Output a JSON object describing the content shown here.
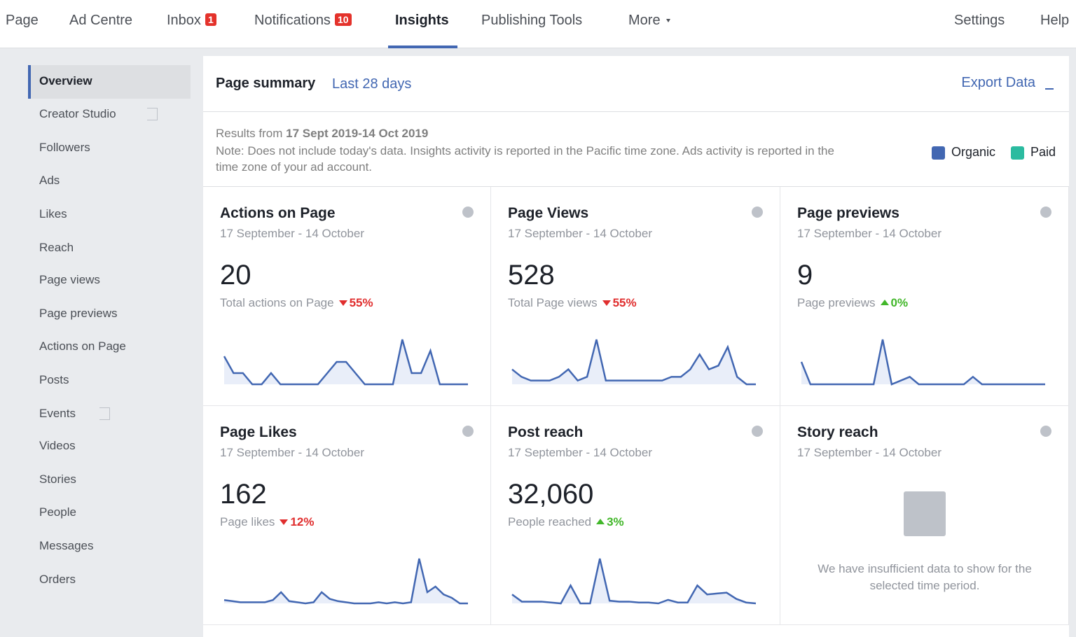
{
  "nav": {
    "items": [
      {
        "label": "Page"
      },
      {
        "label": "Ad Centre"
      },
      {
        "label": "Inbox",
        "badge": "1"
      },
      {
        "label": "Notifications",
        "badge": "10"
      },
      {
        "label": "Insights",
        "active": true
      },
      {
        "label": "Publishing Tools"
      },
      {
        "label": "More",
        "menu": true
      }
    ],
    "right": [
      "Settings",
      "Help"
    ]
  },
  "sidebar": {
    "items": [
      {
        "label": "Overview",
        "active": true
      },
      {
        "label": "Creator Studio",
        "external": true
      },
      {
        "label": "Followers"
      },
      {
        "label": "Ads"
      },
      {
        "label": "Likes"
      },
      {
        "label": "Reach"
      },
      {
        "label": "Page views"
      },
      {
        "label": "Page previews"
      },
      {
        "label": "Actions on Page"
      },
      {
        "label": "Posts"
      },
      {
        "label": "Events",
        "external": true
      },
      {
        "label": "Videos"
      },
      {
        "label": "Stories"
      },
      {
        "label": "People"
      },
      {
        "label": "Messages"
      },
      {
        "label": "Orders"
      }
    ]
  },
  "summary": {
    "title": "Page summary",
    "range": "Last 28 days",
    "export": "Export Data",
    "results_prefix": "Results from",
    "results_range": "17 Sept 2019-14 Oct 2019",
    "note": "Note: Does not include today's data. Insights activity is reported in the Pacific time zone. Ads activity is reported in the time zone of your ad account.",
    "legend": [
      {
        "name": "Organic",
        "color": "#4267b2"
      },
      {
        "name": "Paid",
        "color": "#2bbba0"
      }
    ]
  },
  "cards": [
    {
      "title": "Actions on Page",
      "dates": "17 September - 14 October",
      "value": "20",
      "caption": "Total actions on Page",
      "change": "55%",
      "direction": "down",
      "spark": [
        2.5,
        1,
        1,
        0,
        0,
        1,
        0,
        0,
        0,
        0,
        0,
        1,
        2,
        2,
        1,
        0,
        0,
        0,
        0,
        4,
        1,
        1,
        3,
        0,
        0,
        0,
        0
      ]
    },
    {
      "title": "Page Views",
      "dates": "17 September - 14 October",
      "value": "528",
      "caption": "Total Page views",
      "change": "55%",
      "direction": "down",
      "spark": [
        2,
        1,
        0.5,
        0.5,
        0.5,
        1,
        2,
        0.5,
        1,
        6,
        0.5,
        0.5,
        0.5,
        0.5,
        0.5,
        0.5,
        0.5,
        1,
        1,
        2,
        4,
        2,
        2.5,
        5,
        1,
        0,
        0
      ]
    },
    {
      "title": "Page previews",
      "dates": "17 September - 14 October",
      "value": "9",
      "caption": "Page previews",
      "change": "0%",
      "direction": "up",
      "spark": [
        3,
        0,
        0,
        0,
        0,
        0,
        0,
        0,
        0,
        6,
        0,
        0.5,
        1,
        0,
        0,
        0,
        0,
        0,
        0,
        1,
        0,
        0,
        0,
        0,
        0,
        0,
        0,
        0
      ]
    },
    {
      "title": "Page Likes",
      "dates": "17 September - 14 October",
      "value": "162",
      "caption": "Page likes",
      "change": "12%",
      "direction": "down",
      "spark": [
        0.3,
        0.2,
        0.1,
        0.1,
        0.1,
        0.1,
        0.3,
        1,
        0.2,
        0.1,
        0,
        0.1,
        1,
        0.4,
        0.2,
        0.1,
        0,
        0,
        0,
        0.1,
        0,
        0.1,
        0,
        0.1,
        4,
        1,
        1.5,
        0.8,
        0.5,
        0,
        0
      ]
    },
    {
      "title": "Post reach",
      "dates": "17 September - 14 October",
      "value": "32,060",
      "caption": "People reached",
      "change": "3%",
      "direction": "up",
      "spark": [
        1,
        0.2,
        0.2,
        0.2,
        0.1,
        0,
        2,
        0,
        0,
        5,
        0.3,
        0.2,
        0.2,
        0.1,
        0.1,
        0,
        0.4,
        0.1,
        0.1,
        2,
        1,
        1.1,
        1.2,
        0.5,
        0.1,
        0
      ]
    },
    {
      "title": "Story reach",
      "dates": "17 September - 14 October",
      "message": "We have insufficient data to show for the selected time period."
    }
  ]
}
